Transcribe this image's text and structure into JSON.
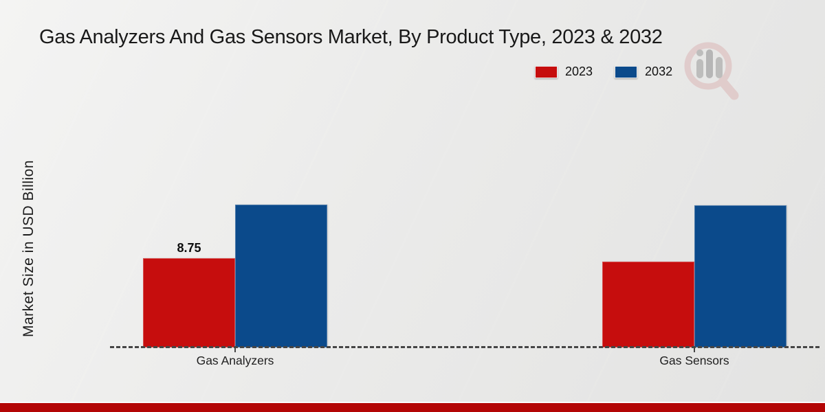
{
  "title": "Gas Analyzers And Gas Sensors Market, By Product Type, 2023 & 2032",
  "y_axis_label": "Market Size in USD Billion",
  "legend": {
    "items": [
      {
        "label": "2023",
        "color": "#c60d0d"
      },
      {
        "label": "2032",
        "color": "#0b4a8b"
      }
    ]
  },
  "watermark": {
    "name": "magnifier-bar-chart-logo"
  },
  "footer": {
    "accent_color": "#b30505"
  },
  "chart_data": {
    "type": "bar",
    "title": "Gas Analyzers And Gas Sensors Market, By Product Type, 2023 & 2032",
    "categories": [
      "Gas Analyzers",
      "Gas Sensors"
    ],
    "series": [
      {
        "name": "2023",
        "color": "#c60d0d",
        "values": [
          8.75,
          8.4
        ]
      },
      {
        "name": "2032",
        "color": "#0b4a8b",
        "values": [
          14.0,
          13.9
        ]
      }
    ],
    "value_labels": [
      {
        "series_index": 0,
        "category_index": 0,
        "text": "8.75"
      }
    ],
    "xlabel": "",
    "ylabel": "Market Size in USD Billion",
    "ylim": [
      0,
      15
    ],
    "grid": false,
    "y_axis_ticks_visible": false,
    "legend_position": "top-right",
    "baseline_style": "dashed"
  }
}
